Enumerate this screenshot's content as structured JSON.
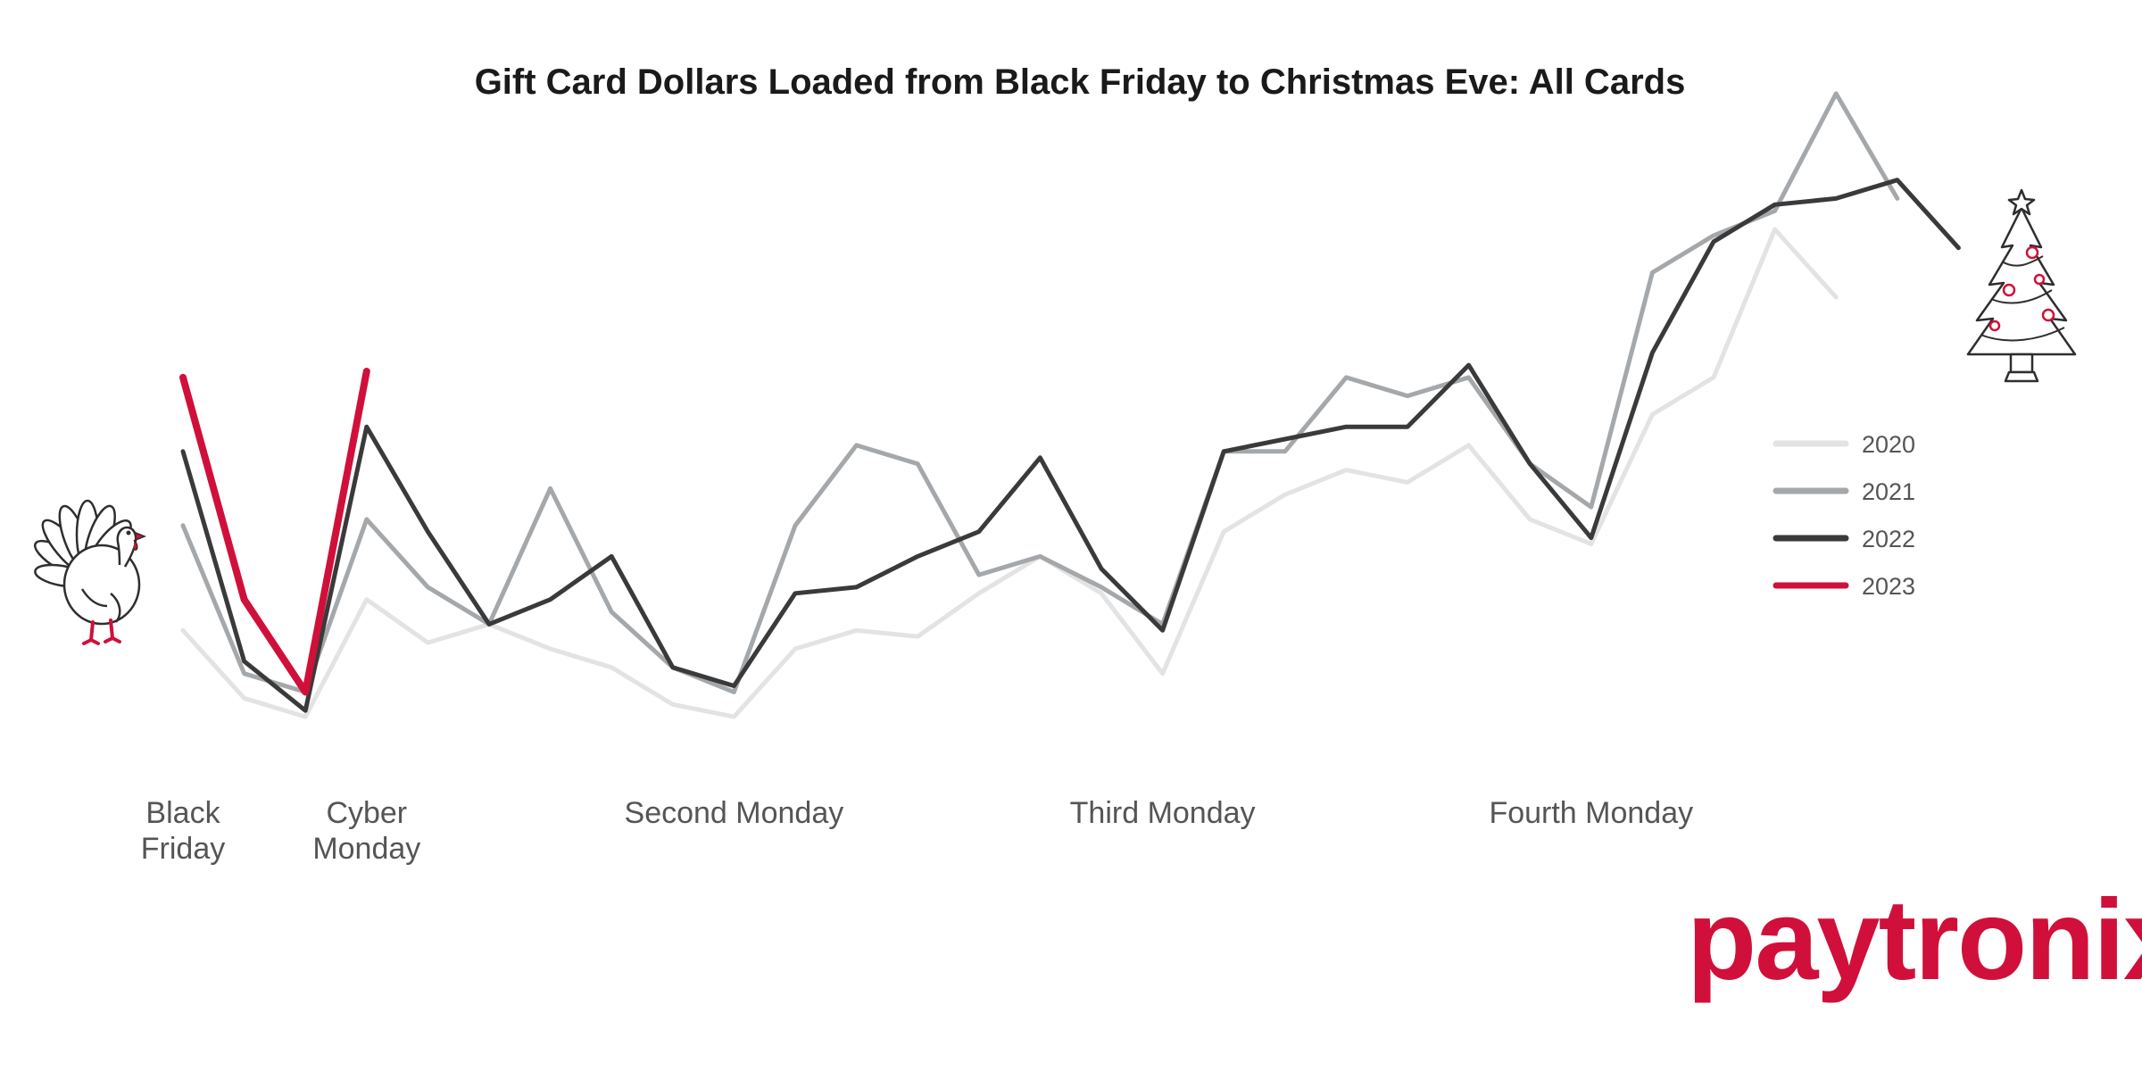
{
  "chart_data": {
    "type": "line",
    "title": "Gift Card Dollars Loaded from Black Friday to Christmas Eve: All Cards",
    "xlabel": "",
    "ylabel": "",
    "ylim": [
      0,
      100
    ],
    "x_count": 30,
    "x_tick_labels": [
      {
        "x": 0,
        "lines": [
          "Black",
          "Friday"
        ]
      },
      {
        "x": 3,
        "lines": [
          "Cyber",
          "Monday"
        ]
      },
      {
        "x": 9,
        "lines": [
          "Second Monday"
        ]
      },
      {
        "x": 16,
        "lines": [
          "Third Monday"
        ]
      },
      {
        "x": 23,
        "lines": [
          "Fourth Monday"
        ]
      }
    ],
    "grid": false,
    "legend_position": "right",
    "series": [
      {
        "name": "2020",
        "color": "#e3e3e3",
        "values": [
          15,
          4,
          1,
          20,
          13,
          16,
          12,
          9,
          3,
          1,
          12,
          15,
          14,
          21,
          27,
          21,
          8,
          31,
          37,
          41,
          39,
          45,
          33,
          29,
          50,
          56,
          80,
          69
        ]
      },
      {
        "name": "2021",
        "color": "#a5a8ab",
        "values": [
          32,
          8,
          5,
          33,
          22,
          16,
          38,
          18,
          9,
          5,
          32,
          45,
          42,
          24,
          27,
          22,
          16,
          44,
          44,
          56,
          53,
          56,
          42,
          35,
          73,
          79,
          83,
          102,
          85
        ]
      },
      {
        "name": "2022",
        "color": "#3a3a3a",
        "values": [
          44,
          10,
          2,
          48,
          31,
          16,
          20,
          27,
          9,
          6,
          21,
          22,
          27,
          31,
          43,
          25,
          15,
          44,
          46,
          48,
          48,
          58,
          42,
          30,
          60,
          78,
          84,
          85,
          88,
          77
        ]
      },
      {
        "name": "2023",
        "color": "#d0103a",
        "values": [
          56,
          20,
          5,
          57
        ]
      }
    ]
  },
  "brand": {
    "logo_text": "paytronix",
    "color": "#d0103a"
  },
  "decorations": {
    "left": "turkey-illustration",
    "right": "christmas-tree-illustration"
  }
}
